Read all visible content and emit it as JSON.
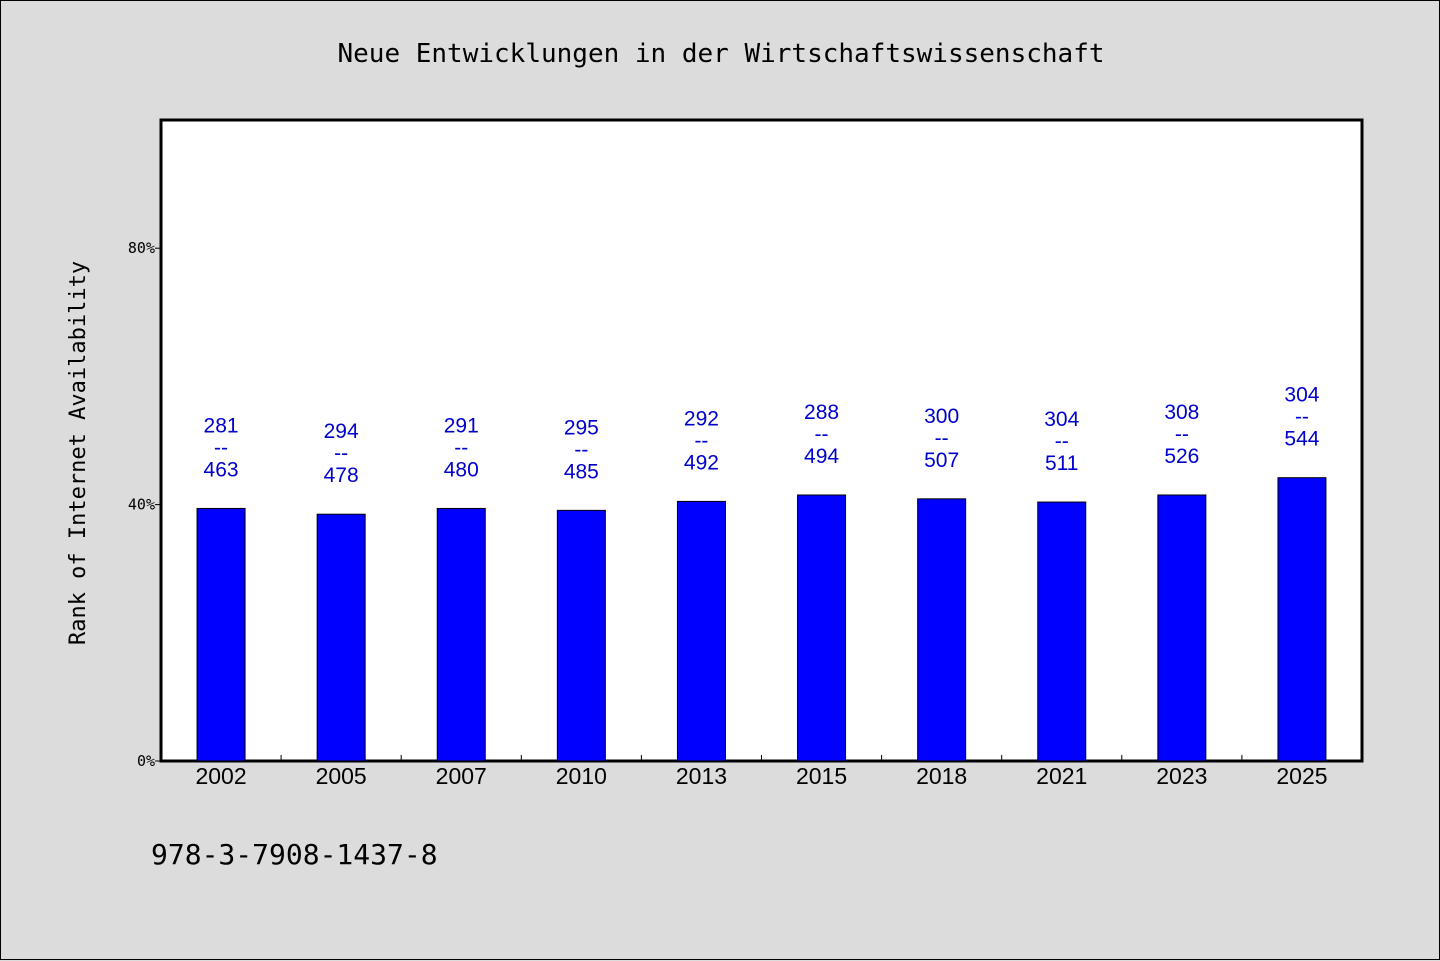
{
  "chart_data": {
    "type": "bar",
    "title": "Neue Entwicklungen in der Wirtschaftswissenschaft",
    "ylabel": "Rank of Internet Availability",
    "xlabel": "",
    "ylim": [
      0,
      100
    ],
    "yticks": [
      {
        "value": 0,
        "label": "0%"
      },
      {
        "value": 40,
        "label": "40%"
      },
      {
        "value": 80,
        "label": "80%"
      }
    ],
    "categories": [
      "2002",
      "2005",
      "2007",
      "2010",
      "2013",
      "2015",
      "2018",
      "2021",
      "2023",
      "2025"
    ],
    "values": [
      39.4,
      38.5,
      39.4,
      39.1,
      40.5,
      41.5,
      40.9,
      40.4,
      41.5,
      44.2
    ],
    "bar_labels": [
      {
        "top": "281",
        "sep": "--",
        "bottom": "463"
      },
      {
        "top": "294",
        "sep": "--",
        "bottom": "478"
      },
      {
        "top": "291",
        "sep": "--",
        "bottom": "480"
      },
      {
        "top": "295",
        "sep": "--",
        "bottom": "485"
      },
      {
        "top": "292",
        "sep": "--",
        "bottom": "492"
      },
      {
        "top": "288",
        "sep": "--",
        "bottom": "494"
      },
      {
        "top": "300",
        "sep": "--",
        "bottom": "507"
      },
      {
        "top": "304",
        "sep": "--",
        "bottom": "511"
      },
      {
        "top": "308",
        "sep": "--",
        "bottom": "526"
      },
      {
        "top": "304",
        "sep": "--",
        "bottom": "544"
      }
    ],
    "bar_color": "#0000ff",
    "label_color": "#0000cc",
    "grid": false,
    "legend": "none"
  },
  "footer": {
    "isbn": "978-3-7908-1437-8"
  }
}
